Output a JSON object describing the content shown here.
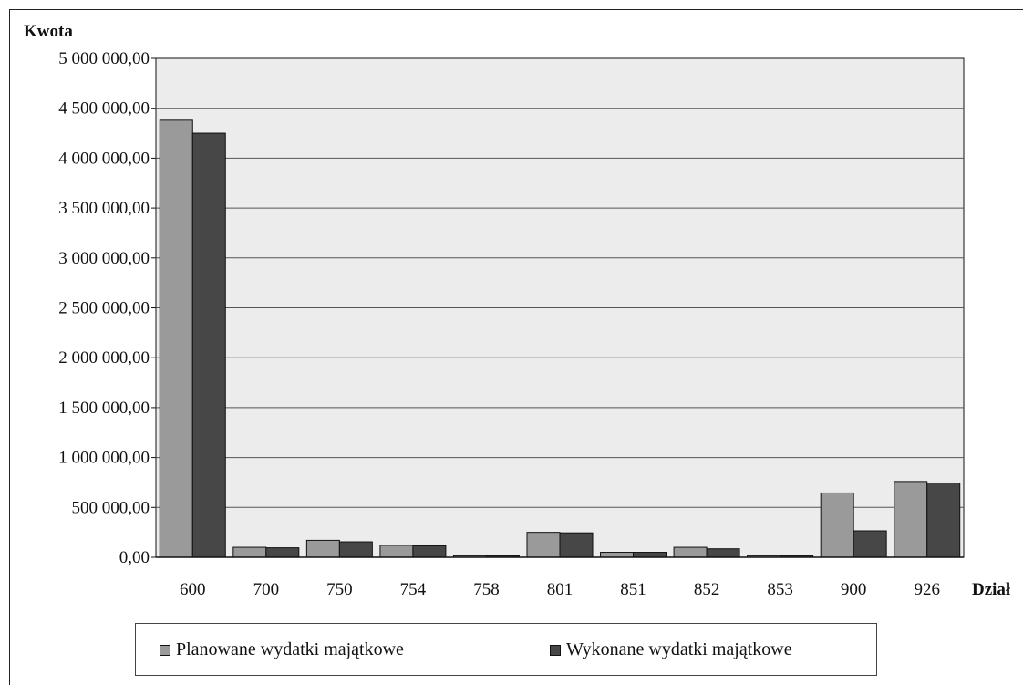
{
  "colors": {
    "plot_bg": "#ececec",
    "grid": "#555555",
    "planned": "#9a9a9a",
    "executed": "#474747",
    "stroke": "#111111"
  },
  "chart_data": {
    "type": "bar",
    "ylabel": "Kwota",
    "xlabel": "Dział",
    "ylim": [
      0,
      5000000
    ],
    "yticks": [
      "0,00",
      "500 000,00",
      "1 000 000,00",
      "1 500 000,00",
      "2 000 000,00",
      "2 500 000,00",
      "3 000 000,00",
      "3 500 000,00",
      "4 000 000,00",
      "4 500 000,00",
      "5 000 000,00"
    ],
    "categories": [
      "600",
      "700",
      "750",
      "754",
      "758",
      "801",
      "851",
      "852",
      "853",
      "900",
      "926"
    ],
    "series": [
      {
        "name": "Planowane wydatki majątkowe",
        "values": [
          4380000,
          100000,
          170000,
          120000,
          15000,
          250000,
          50000,
          100000,
          15000,
          645000,
          760000
        ]
      },
      {
        "name": "Wykonane wydatki majątkowe",
        "values": [
          4250000,
          95000,
          155000,
          115000,
          15000,
          245000,
          50000,
          85000,
          15000,
          265000,
          745000
        ]
      }
    ],
    "grid": true,
    "legend": "bottom"
  }
}
